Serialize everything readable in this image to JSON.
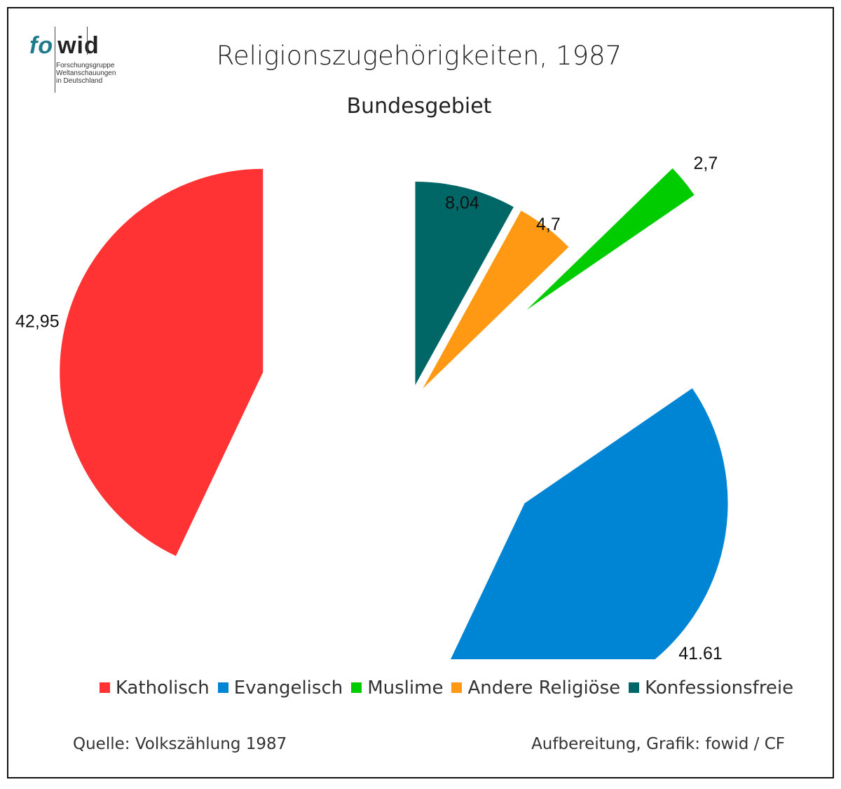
{
  "logo": {
    "fo": "fo",
    "wid": "wid",
    "line1": "Forschungsgruppe",
    "line2": "Weltanschauungen",
    "line3": "in Deutschland"
  },
  "chart_data": {
    "type": "pie",
    "title": "Religionszugehörigkeiten, 1987",
    "subtitle": "Bundesgebiet",
    "slices": [
      {
        "name": "Katholisch",
        "value": 42.95,
        "label": "42,95",
        "color": "#ff3333"
      },
      {
        "name": "Evangelisch",
        "value": 41.61,
        "label": "41,61",
        "color": "#0084d4"
      },
      {
        "name": "Muslime",
        "value": 2.7,
        "label": "2,7",
        "color": "#00cc00"
      },
      {
        "name": "Andere Religiöse",
        "value": 4.7,
        "label": "4,7",
        "color": "#ff9913"
      },
      {
        "name": "Konfessionsfreie",
        "value": 8.04,
        "label": "8,04",
        "color": "#006666"
      }
    ],
    "drawing_order": [
      "Konfessionsfreie",
      "Andere Religiöse",
      "Muslime",
      "Evangelisch",
      "Katholisch"
    ],
    "exploded": true,
    "legend_position": "bottom"
  },
  "footer": {
    "source": "Quelle: Volkszählung 1987",
    "credit": "Aufbereitung, Grafik: fowid / CF"
  }
}
